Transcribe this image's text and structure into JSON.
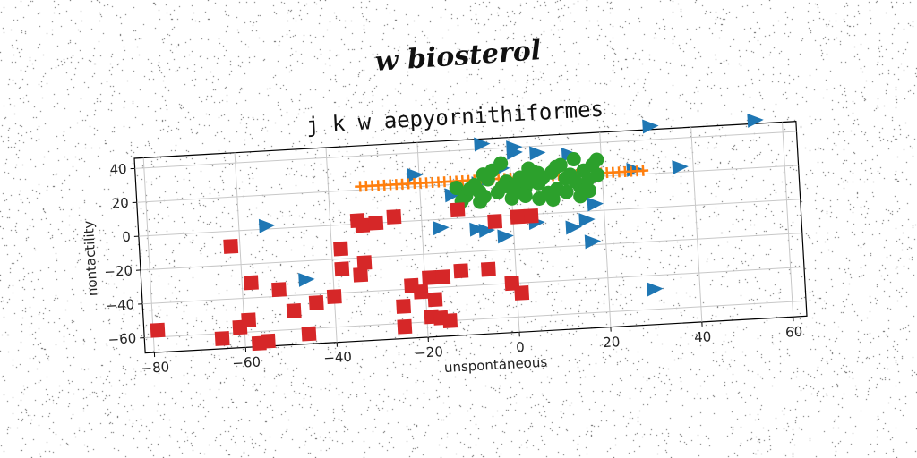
{
  "suptitle": "w biosterol",
  "chart_data": {
    "type": "scatter",
    "title": "j k w aepyornithiformes",
    "xlabel": "unspontaneous",
    "ylabel": "nontactility",
    "xlim": [
      -82,
      63
    ],
    "ylim": [
      -69,
      46
    ],
    "xticks": [
      -80,
      -60,
      -40,
      -20,
      0,
      20,
      40,
      60
    ],
    "yticks": [
      -60,
      -40,
      -20,
      0,
      20,
      40
    ],
    "grid": true,
    "series": [
      {
        "marker": "triangle-right",
        "color": "#1f77b4",
        "points": [
          [
            -54,
            2
          ],
          [
            -46,
            -31
          ],
          [
            -21,
            27
          ],
          [
            -16,
            -5
          ],
          [
            -8,
            -7
          ],
          [
            -6,
            -8
          ],
          [
            -6,
            43
          ],
          [
            -2,
            28
          ],
          [
            -2,
            -12
          ],
          [
            1,
            40
          ],
          [
            1,
            37
          ],
          [
            5,
            -5
          ],
          [
            6,
            36
          ],
          [
            13,
            -9
          ],
          [
            13,
            34
          ],
          [
            16,
            -5
          ],
          [
            17,
            -18
          ],
          [
            18,
            4
          ],
          [
            27,
            23
          ],
          [
            30,
            -48
          ],
          [
            31,
            48
          ],
          [
            37,
            23
          ],
          [
            54,
            48
          ],
          [
            -7,
            20
          ],
          [
            -13,
            14
          ]
        ]
      },
      {
        "marker": "plus",
        "color": "#ff7f0e",
        "x_range": [
          -33,
          29
        ],
        "y": 22,
        "count": 48
      },
      {
        "marker": "circle",
        "color": "#2ca02c",
        "points": [
          [
            -12,
            18
          ],
          [
            -10,
            13
          ],
          [
            -9,
            17
          ],
          [
            -8,
            19
          ],
          [
            -7,
            15
          ],
          [
            -6,
            12
          ],
          [
            -5,
            22
          ],
          [
            -4,
            27
          ],
          [
            -3,
            14
          ],
          [
            -2,
            17
          ],
          [
            -1,
            20
          ],
          [
            0,
            16
          ],
          [
            1,
            18
          ],
          [
            2,
            22
          ],
          [
            3,
            15
          ],
          [
            4,
            19
          ],
          [
            5,
            25
          ],
          [
            6,
            18
          ],
          [
            7,
            21
          ],
          [
            8,
            12
          ],
          [
            9,
            24
          ],
          [
            10,
            14
          ],
          [
            11,
            28
          ],
          [
            12,
            20
          ],
          [
            13,
            22
          ],
          [
            14,
            31
          ],
          [
            15,
            15
          ],
          [
            16,
            24
          ],
          [
            17,
            19
          ],
          [
            18,
            27
          ],
          [
            19,
            21
          ],
          [
            10,
            27
          ],
          [
            -11,
            10
          ],
          [
            -7,
            9
          ],
          [
            0,
            10
          ],
          [
            3,
            11
          ],
          [
            6,
            9
          ],
          [
            9,
            8
          ],
          [
            12,
            12
          ],
          [
            15,
            9
          ],
          [
            19,
            30
          ],
          [
            -2,
            31
          ],
          [
            6,
            24
          ],
          [
            4,
            27
          ],
          [
            14,
            18
          ],
          [
            -6,
            25
          ],
          [
            1,
            13
          ],
          [
            17,
            12
          ]
        ]
      },
      {
        "marker": "square",
        "color": "#d62728",
        "points": [
          [
            -79,
            -56
          ],
          [
            -65,
            -63
          ],
          [
            -62,
            -9
          ],
          [
            -61,
            -57
          ],
          [
            -59,
            -53
          ],
          [
            -58,
            -31
          ],
          [
            -57,
            -67
          ],
          [
            -55,
            -66
          ],
          [
            -52,
            -36
          ],
          [
            -49,
            -49
          ],
          [
            -46,
            -63
          ],
          [
            -44,
            -45
          ],
          [
            -40,
            -42
          ],
          [
            -38,
            -26
          ],
          [
            -38,
            -14
          ],
          [
            -34,
            -30
          ],
          [
            -34,
            2
          ],
          [
            -33,
            -23
          ],
          [
            -33,
            -1
          ],
          [
            -30,
            0
          ],
          [
            -26,
            3
          ],
          [
            -25,
            -50
          ],
          [
            -25,
            -62
          ],
          [
            -23,
            -38
          ],
          [
            -21,
            -42
          ],
          [
            -19,
            -57
          ],
          [
            -19,
            -34
          ],
          [
            -18,
            -47
          ],
          [
            -17,
            -58
          ],
          [
            -16,
            -34
          ],
          [
            -15,
            -60
          ],
          [
            -12,
            -31
          ],
          [
            -12,
            5
          ],
          [
            -6,
            -31
          ],
          [
            -4,
            -3
          ],
          [
            -1,
            -40
          ],
          [
            1,
            -1
          ],
          [
            1,
            -46
          ],
          [
            4,
            -1
          ]
        ]
      }
    ]
  }
}
